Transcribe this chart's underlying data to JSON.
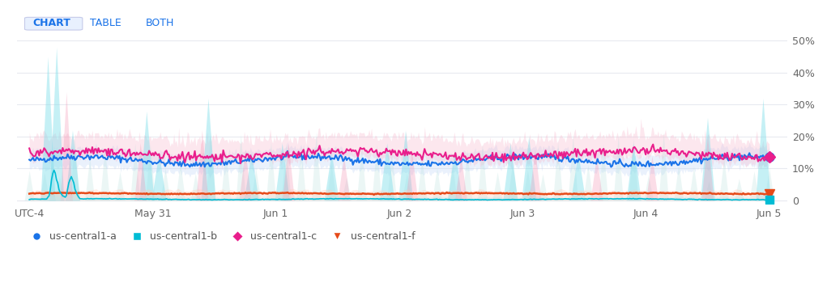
{
  "title": "",
  "background_color": "#ffffff",
  "x_labels": [
    "UTC-4",
    "May 31",
    "Jun 1",
    "Jun 2",
    "Jun 3",
    "Jun 4",
    "Jun 5"
  ],
  "x_positions": [
    0,
    1,
    2,
    3,
    4,
    5,
    6
  ],
  "y_ticks": [
    0,
    10,
    20,
    30,
    40,
    50
  ],
  "y_tick_labels": [
    "0",
    "10%",
    "20%",
    "30%",
    "40%",
    "50%"
  ],
  "ylim": [
    -1,
    52
  ],
  "grid_color": "#e8eaf0",
  "series": {
    "us_central1_a": {
      "color": "#1a73e8",
      "color_band": "#c5d9f8",
      "label": "us-central1-a",
      "mean_level": 12.5,
      "marker_color": "#1a73e8",
      "marker_shape": "o"
    },
    "us_central1_b": {
      "color": "#00bcd4",
      "color_band": "#b2ebf2",
      "label": "us-central1-b",
      "mean_level": 0.5,
      "marker_color": "#00bcd4",
      "marker_shape": "s"
    },
    "us_central1_c": {
      "color": "#e91e8c",
      "color_band": "#f8bbd0",
      "label": "us-central1-c",
      "mean_level": 14.5,
      "marker_color": "#e91e8c",
      "marker_shape": "D"
    },
    "us_central1_f": {
      "color": "#e64a19",
      "color_band": "#ffccbc",
      "label": "us-central1-f",
      "mean_level": 2.2,
      "marker_color": "#e64a19",
      "marker_shape": "v"
    }
  },
  "header_items": [
    "CHART",
    "TABLE",
    "BOTH"
  ],
  "header_bg": "#e8f0fe",
  "header_color": "#1a73e8",
  "big_spikes_x": [
    0.15,
    0.22,
    0.35,
    0.95,
    1.05,
    1.45,
    1.8,
    2.05,
    2.45,
    2.9,
    3.05,
    3.45,
    3.9,
    4.05,
    4.45,
    4.9,
    5.5,
    5.95
  ],
  "big_spikes_h": [
    45,
    48,
    22,
    28,
    15,
    32,
    15,
    18,
    15,
    18,
    22,
    16,
    18,
    20,
    15,
    18,
    26,
    32
  ],
  "mag_spikes_x": [
    0.3,
    0.9,
    1.4,
    1.75,
    2.1,
    2.55,
    3.1,
    3.5,
    4.1,
    4.6,
    5.05,
    5.5
  ],
  "mag_spikes_h": [
    34,
    18,
    22,
    16,
    18,
    14,
    16,
    14,
    16,
    14,
    14,
    20
  ]
}
